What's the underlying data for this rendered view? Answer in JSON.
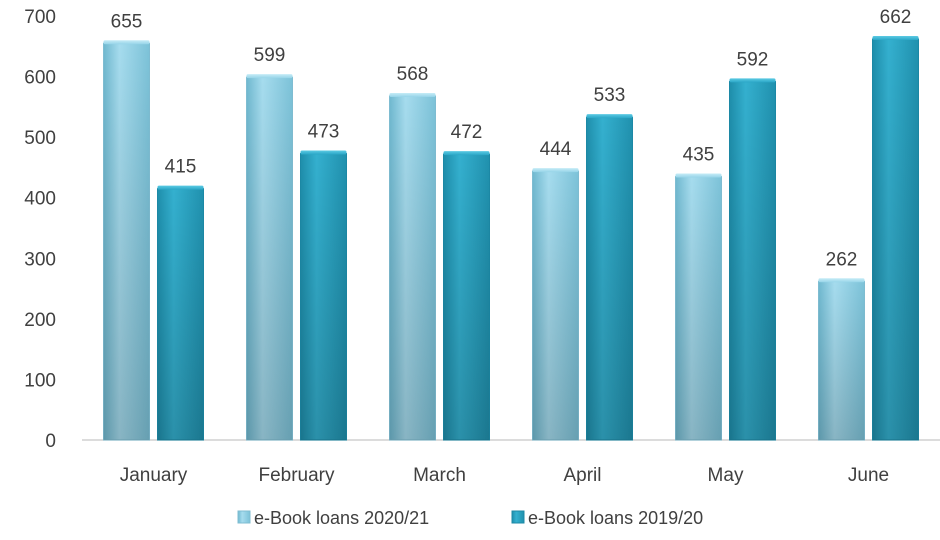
{
  "chart_data": {
    "type": "bar",
    "title": "",
    "xlabel": "",
    "ylabel": "",
    "categories": [
      "January",
      "February",
      "March",
      "April",
      "May",
      "June"
    ],
    "series": [
      {
        "name": "e-Book loans 2020/21",
        "values": [
          655,
          599,
          568,
          444,
          435,
          262
        ],
        "color": "#8fd0e6"
      },
      {
        "name": "e-Book loans 2019/20",
        "values": [
          415,
          473,
          472,
          533,
          592,
          662
        ],
        "color": "#2aa6c6"
      }
    ],
    "ylim": [
      0,
      700
    ],
    "yticks": [
      0,
      100,
      200,
      300,
      400,
      500,
      600,
      700
    ],
    "grid": false,
    "legend": "bottom",
    "data_labels": true
  }
}
